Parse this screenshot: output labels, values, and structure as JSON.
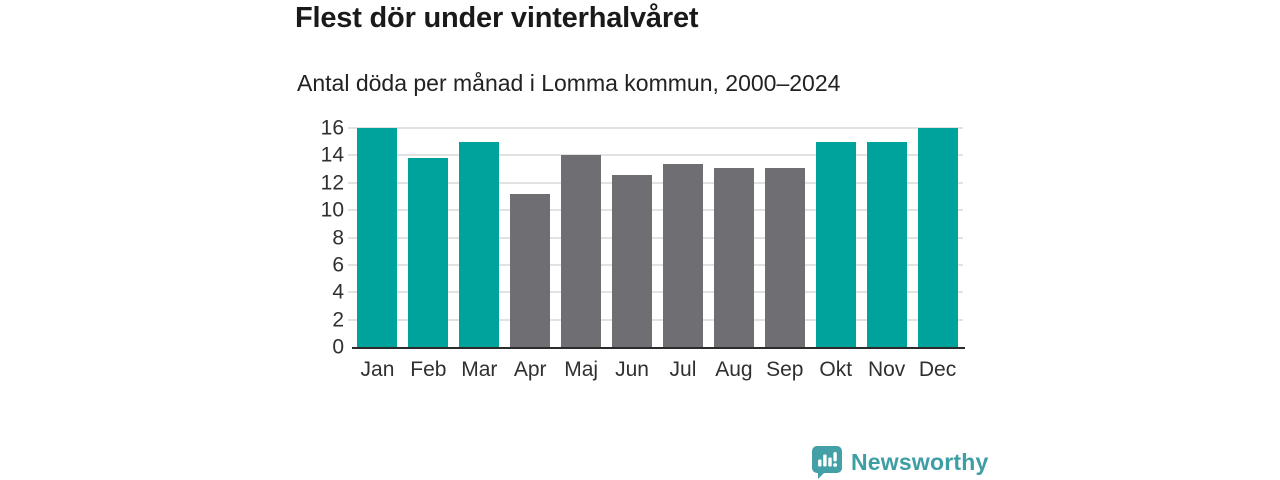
{
  "header": {
    "title": "Flest dör under vinterhalvåret",
    "subtitle": "Antal döda per månad i Lomma kommun, 2000–2024"
  },
  "chart_data": {
    "type": "bar",
    "title": "Flest dör under vinterhalvåret",
    "subtitle": "Antal döda per månad i Lomma kommun, 2000–2024",
    "categories": [
      "Jan",
      "Feb",
      "Mar",
      "Apr",
      "Maj",
      "Jun",
      "Jul",
      "Aug",
      "Sep",
      "Okt",
      "Nov",
      "Dec"
    ],
    "values": [
      16,
      13.8,
      15,
      11.2,
      14,
      12.6,
      13.4,
      13.1,
      13.1,
      15,
      15,
      16
    ],
    "bar_colors": [
      "#00a39b",
      "#00a39b",
      "#00a39b",
      "#6e6e73",
      "#6e6e73",
      "#6e6e73",
      "#6e6e73",
      "#6e6e73",
      "#6e6e73",
      "#00a39b",
      "#00a39b",
      "#00a39b"
    ],
    "highlight_color": "#00a39b",
    "muted_color": "#6e6e73",
    "xlabel": "",
    "ylabel": "",
    "ylim": [
      0,
      16
    ],
    "yticks": [
      0,
      2,
      4,
      6,
      8,
      10,
      12,
      14,
      16
    ],
    "grid": true,
    "legend": "none",
    "gridline_color": "#e2e2e2",
    "axis_color": "#2b2b2b"
  },
  "footer": {
    "brand": "Newsworthy",
    "logo_icon": "bar-chart-speech-bubble",
    "brand_color": "#3d9ea4",
    "logo_fill": "#43a0a6"
  }
}
